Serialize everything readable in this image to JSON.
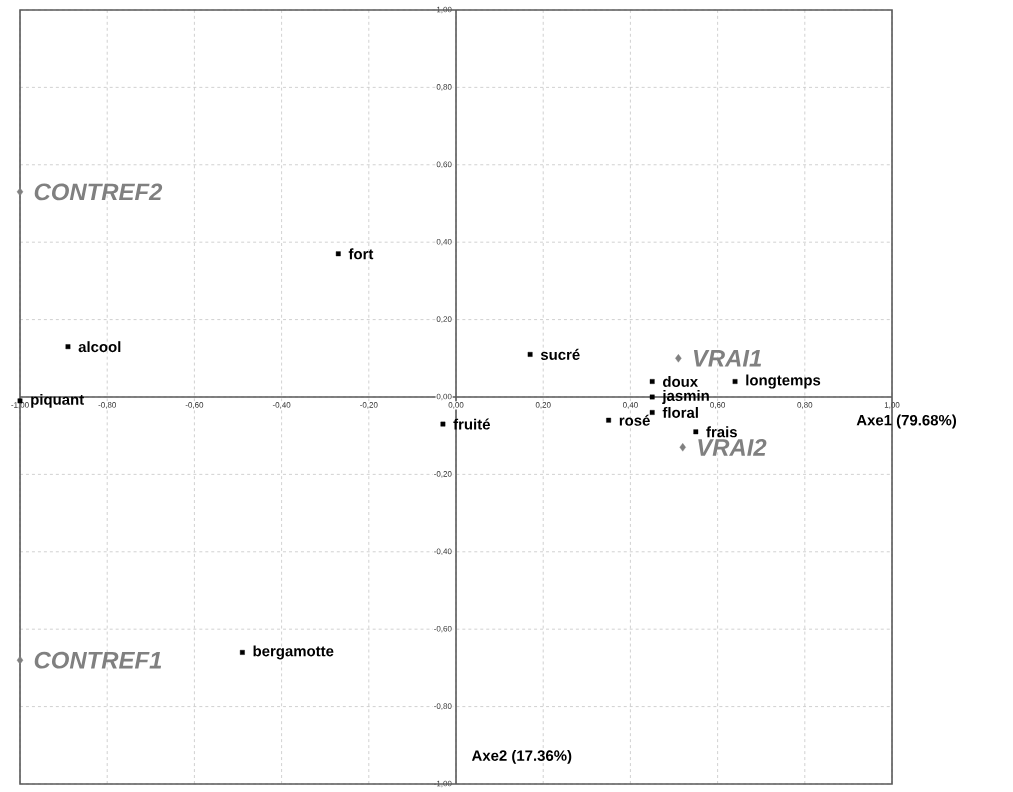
{
  "chart_data": {
    "type": "scatter",
    "xlabel": "Axe1 (79.68%)",
    "ylabel": "Axe2 (17.36%)",
    "xlim": [
      -1,
      1
    ],
    "ylim": [
      -1,
      1
    ],
    "xticks": [
      {
        "value": -1,
        "label": "-1,00"
      },
      {
        "value": -0.8,
        "label": "-0,80"
      },
      {
        "value": -0.6,
        "label": "-0,60"
      },
      {
        "value": -0.4,
        "label": "-0,40"
      },
      {
        "value": -0.2,
        "label": "-0,20"
      },
      {
        "value": 0,
        "label": "0,00"
      },
      {
        "value": 0.2,
        "label": "0,20"
      },
      {
        "value": 0.4,
        "label": "0,40"
      },
      {
        "value": 0.6,
        "label": "0,60"
      },
      {
        "value": 0.8,
        "label": "0,80"
      },
      {
        "value": 1,
        "label": "1,00"
      }
    ],
    "yticks": [
      {
        "value": -1,
        "label": "-1,00"
      },
      {
        "value": -0.8,
        "label": "-0,80"
      },
      {
        "value": -0.6,
        "label": "-0,60"
      },
      {
        "value": -0.4,
        "label": "-0,40"
      },
      {
        "value": -0.2,
        "label": "-0,20"
      },
      {
        "value": 0,
        "label": "0,00"
      },
      {
        "value": 0.2,
        "label": "0,20"
      },
      {
        "value": 0.4,
        "label": "0,40"
      },
      {
        "value": 0.6,
        "label": "0,60"
      },
      {
        "value": 0.8,
        "label": "0,80"
      },
      {
        "value": 1,
        "label": "1,00"
      }
    ],
    "grid": true,
    "marker": "square",
    "series": [
      {
        "color": "#000000",
        "x": [
          -0.27,
          -0.89,
          -1.0,
          -0.03,
          0.17,
          0.45,
          0.45,
          0.45,
          0.55,
          0.35,
          0.64,
          -0.49
        ],
        "values": [
          0.37,
          0.13,
          -0.01,
          -0.07,
          0.11,
          0.04,
          0.0,
          -0.04,
          -0.09,
          -0.06,
          0.04,
          -0.66
        ]
      },
      {
        "color": "#808080",
        "marker": "diamond",
        "x": [
          0.51,
          0.52,
          -1.0,
          -1.0
        ],
        "values": [
          0.1,
          -0.13,
          0.53,
          -0.68
        ]
      }
    ],
    "annotations": [
      {
        "text": "fort",
        "x": -0.27,
        "y": 0.37
      },
      {
        "text": "alcool",
        "x": -0.89,
        "y": 0.13
      },
      {
        "text": "piquant",
        "x": -1.0,
        "y": -0.01
      },
      {
        "text": "fruité",
        "x": -0.03,
        "y": -0.07
      },
      {
        "text": "sucré",
        "x": 0.17,
        "y": 0.11
      },
      {
        "text": "doux",
        "x": 0.45,
        "y": 0.04
      },
      {
        "text": "jasmin",
        "x": 0.45,
        "y": 0.0
      },
      {
        "text": "floral",
        "x": 0.45,
        "y": -0.04
      },
      {
        "text": "frais",
        "x": 0.55,
        "y": -0.09
      },
      {
        "text": "rosé",
        "x": 0.35,
        "y": -0.06
      },
      {
        "text": "longtemps",
        "x": 0.64,
        "y": 0.04
      },
      {
        "text": "bergamotte",
        "x": -0.49,
        "y": -0.66
      },
      {
        "text": "VRAI1",
        "x": 0.51,
        "y": 0.1
      },
      {
        "text": "VRAI2",
        "x": 0.52,
        "y": -0.13
      },
      {
        "text": "CONTREF2",
        "x": -1.0,
        "y": 0.53
      },
      {
        "text": "CONTREF1",
        "x": -1.0,
        "y": -0.68
      }
    ]
  }
}
